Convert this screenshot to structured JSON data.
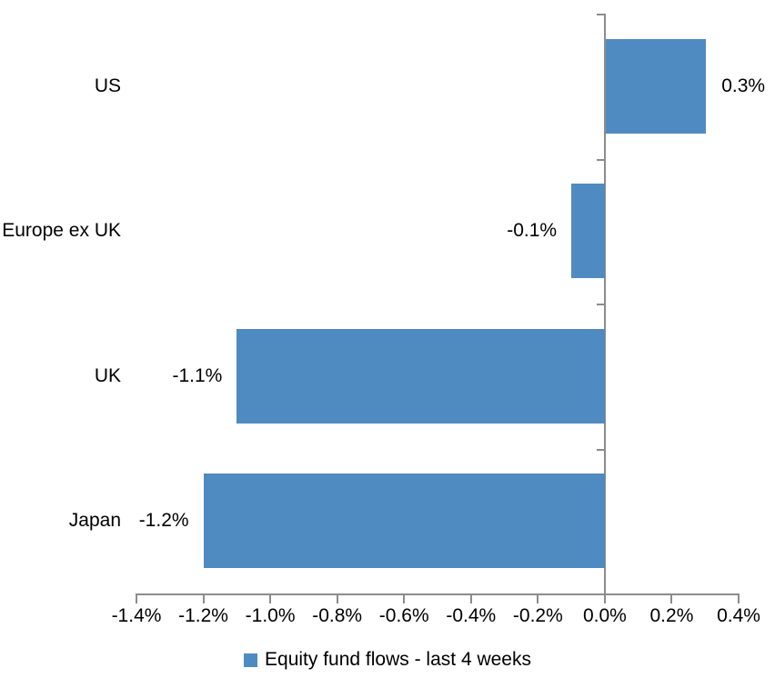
{
  "chart_data": {
    "type": "bar",
    "orientation": "horizontal",
    "title": "",
    "xlabel": "",
    "ylabel": "",
    "categories": [
      "US",
      "Europe ex UK",
      "UK",
      "Japan"
    ],
    "series": [
      {
        "name": "Equity fund flows - last 4 weeks",
        "values": [
          0.3,
          -0.1,
          -1.1,
          -1.2
        ],
        "data_labels": [
          "0.3%",
          "-0.1%",
          "-1.1%",
          "-1.2%"
        ]
      }
    ],
    "xlim": [
      -1.4,
      0.4
    ],
    "x_ticks": [
      -1.4,
      -1.2,
      -1.0,
      -0.8,
      -0.6,
      -0.4,
      -0.2,
      0.0,
      0.2,
      0.4
    ],
    "x_tick_labels": [
      "-1.4%",
      "-1.2%",
      "-1.0%",
      "-0.8%",
      "-0.6%",
      "-0.4%",
      "-0.2%",
      "0.0%",
      "0.2%",
      "0.4%"
    ],
    "grid": false,
    "legend_position": "bottom",
    "colors": {
      "bar": "#4F8BC0",
      "axis": "#8C8C8C",
      "text": "#000000",
      "background": "#FFFFFF"
    }
  },
  "legend": {
    "label": "Equity fund flows - last 4 weeks",
    "marker_color": "#4F8BC0"
  }
}
